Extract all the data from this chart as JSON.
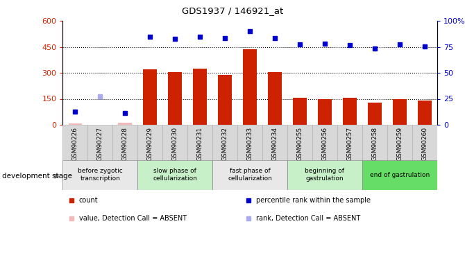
{
  "title": "GDS1937 / 146921_at",
  "samples": [
    "GSM90226",
    "GSM90227",
    "GSM90228",
    "GSM90229",
    "GSM90230",
    "GSM90231",
    "GSM90232",
    "GSM90233",
    "GSM90234",
    "GSM90255",
    "GSM90256",
    "GSM90257",
    "GSM90258",
    "GSM90259",
    "GSM90260"
  ],
  "bar_values": [
    10,
    2,
    12,
    320,
    305,
    325,
    290,
    435,
    305,
    155,
    150,
    155,
    130,
    150,
    140
  ],
  "bar_absent": [
    true,
    true,
    true,
    false,
    false,
    false,
    false,
    false,
    false,
    false,
    false,
    false,
    false,
    false,
    false
  ],
  "rank_values": [
    75,
    null,
    70,
    510,
    495,
    510,
    500,
    540,
    500,
    465,
    470,
    462,
    440,
    463,
    453
  ],
  "rank_absent_vals": [
    null,
    165,
    null,
    null,
    null,
    null,
    null,
    null,
    null,
    null,
    null,
    null,
    null,
    null,
    null
  ],
  "bar_color": "#cc2200",
  "bar_absent_color": "#f4b8b8",
  "rank_color": "#0000cc",
  "rank_absent_color": "#aaaaee",
  "left_ylim": [
    0,
    600
  ],
  "right_ylim": [
    0,
    100
  ],
  "left_yticks": [
    0,
    150,
    300,
    450,
    600
  ],
  "right_yticks": [
    0,
    25,
    50,
    75,
    100
  ],
  "right_yticklabels": [
    "0",
    "25",
    "50",
    "75",
    "100%"
  ],
  "grid_values": [
    150,
    300,
    450
  ],
  "stage_groups": [
    {
      "label": "before zygotic\ntranscription",
      "start": 0,
      "end": 3,
      "color": "#e8e8e8"
    },
    {
      "label": "slow phase of\ncellularization",
      "start": 3,
      "end": 6,
      "color": "#c8f0c8"
    },
    {
      "label": "fast phase of\ncellularization",
      "start": 6,
      "end": 9,
      "color": "#e8e8e8"
    },
    {
      "label": "beginning of\ngastrulation",
      "start": 9,
      "end": 12,
      "color": "#c8f0c8"
    },
    {
      "label": "end of gastrulation",
      "start": 12,
      "end": 15,
      "color": "#66dd66"
    }
  ],
  "xtick_band_color": "#d8d8d8",
  "development_stage_label": "development stage",
  "legend_items": [
    {
      "label": "count",
      "color": "#cc2200"
    },
    {
      "label": "percentile rank within the sample",
      "color": "#0000cc"
    },
    {
      "label": "value, Detection Call = ABSENT",
      "color": "#f4b8b8"
    },
    {
      "label": "rank, Detection Call = ABSENT",
      "color": "#aaaaee"
    }
  ]
}
